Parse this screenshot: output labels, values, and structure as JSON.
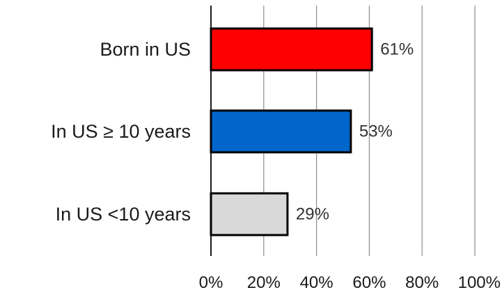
{
  "chart_data": {
    "type": "bar",
    "orientation": "horizontal",
    "categories": [
      "Born in US",
      "In US  ≥ 10 years",
      "In US <10 years"
    ],
    "values": [
      61,
      53,
      29
    ],
    "data_labels": [
      "61%",
      "53%",
      "29%"
    ],
    "colors": [
      "#ff0000",
      "#0066cc",
      "#d9d9d9"
    ],
    "x_ticks": [
      "0%",
      "20%",
      "40%",
      "60%",
      "80%",
      "100%"
    ],
    "xlim": [
      0,
      100
    ],
    "grid": true,
    "legend": "none"
  }
}
